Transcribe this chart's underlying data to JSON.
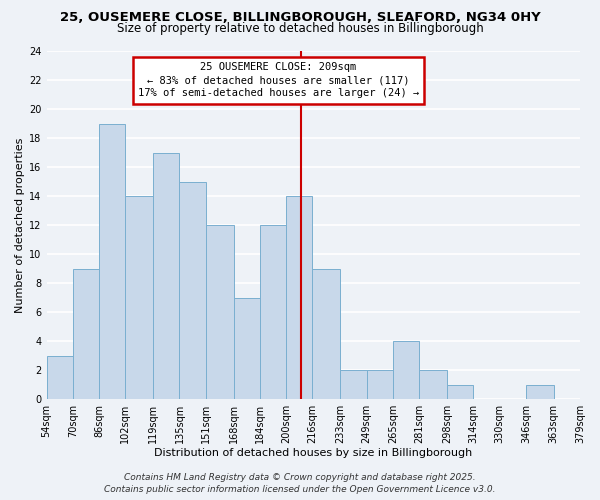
{
  "title": "25, OUSEMERE CLOSE, BILLINGBOROUGH, SLEAFORD, NG34 0HY",
  "subtitle": "Size of property relative to detached houses in Billingborough",
  "xlabel": "Distribution of detached houses by size in Billingborough",
  "ylabel": "Number of detached properties",
  "bin_edges": [
    54,
    70,
    86,
    102,
    119,
    135,
    151,
    168,
    184,
    200,
    216,
    233,
    249,
    265,
    281,
    298,
    314,
    330,
    346,
    363,
    379
  ],
  "bar_heights": [
    3,
    9,
    19,
    14,
    17,
    15,
    12,
    7,
    12,
    14,
    9,
    2,
    2,
    4,
    2,
    1,
    0,
    0,
    1,
    0
  ],
  "bar_color": "#c8d8ea",
  "bar_edge_color": "#7aafd0",
  "reference_line_x": 209,
  "ylim": [
    0,
    24
  ],
  "yticks": [
    0,
    2,
    4,
    6,
    8,
    10,
    12,
    14,
    16,
    18,
    20,
    22,
    24
  ],
  "annotation_title": "25 OUSEMERE CLOSE: 209sqm",
  "annotation_line1": "← 83% of detached houses are smaller (117)",
  "annotation_line2": "17% of semi-detached houses are larger (24) →",
  "annotation_box_color": "#ffffff",
  "annotation_box_edge": "#cc0000",
  "ref_line_color": "#cc0000",
  "tick_labels": [
    "54sqm",
    "70sqm",
    "86sqm",
    "102sqm",
    "119sqm",
    "135sqm",
    "151sqm",
    "168sqm",
    "184sqm",
    "200sqm",
    "216sqm",
    "233sqm",
    "249sqm",
    "265sqm",
    "281sqm",
    "298sqm",
    "314sqm",
    "330sqm",
    "346sqm",
    "363sqm",
    "379sqm"
  ],
  "footer1": "Contains HM Land Registry data © Crown copyright and database right 2025.",
  "footer2": "Contains public sector information licensed under the Open Government Licence v3.0.",
  "background_color": "#eef2f7",
  "grid_color": "#ffffff",
  "title_fontsize": 9.5,
  "subtitle_fontsize": 8.5,
  "axis_label_fontsize": 8,
  "tick_fontsize": 7,
  "annotation_fontsize": 7.5,
  "footer_fontsize": 6.5
}
